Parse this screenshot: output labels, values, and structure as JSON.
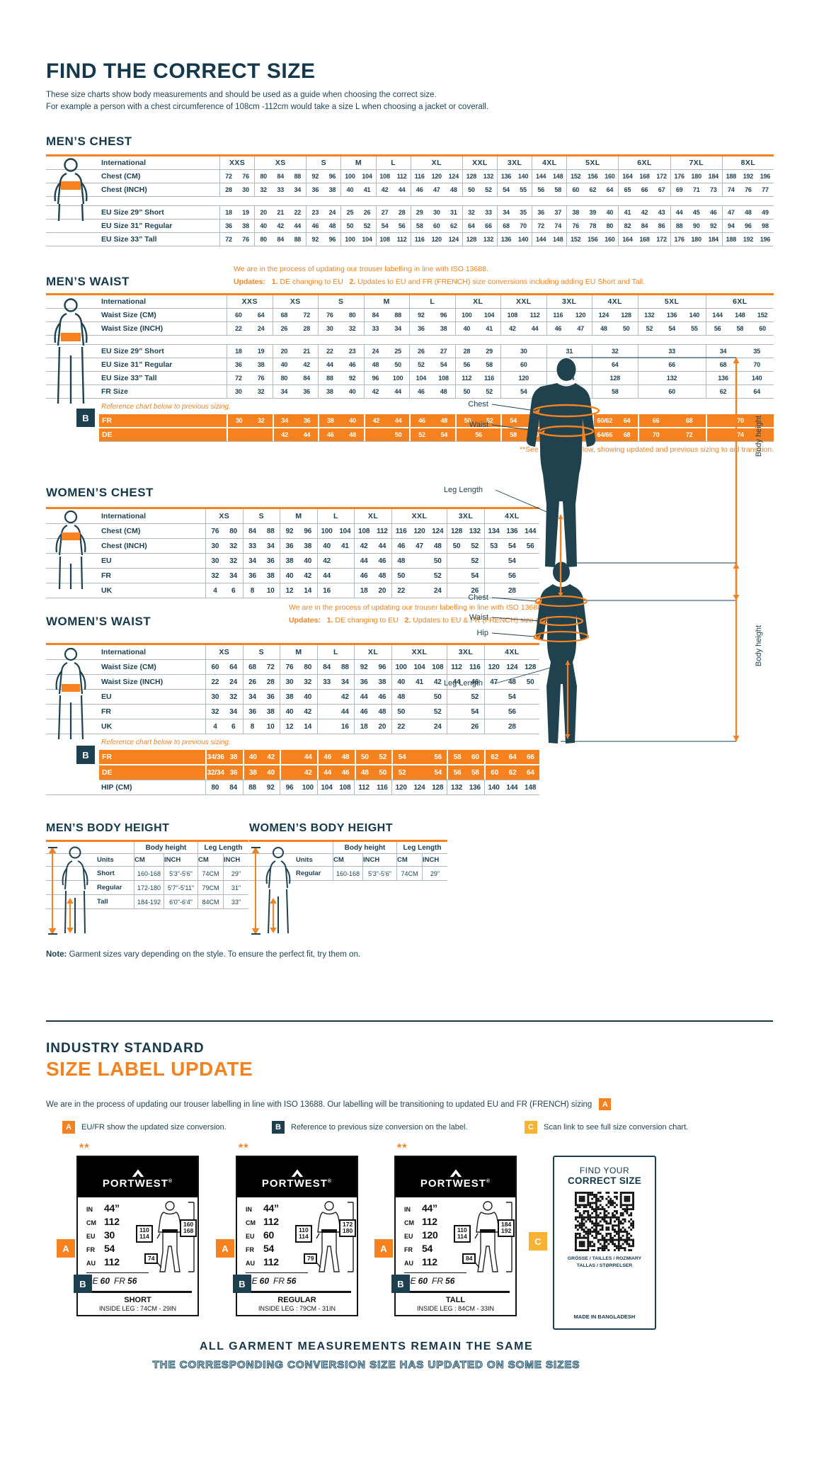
{
  "colors": {
    "orange": "#f5821f",
    "navy": "#16384a",
    "yellow": "#f9b233",
    "legacy_row": "#f5821f"
  },
  "page": {
    "title": "FIND THE CORRECT SIZE",
    "intro1": "These size charts show body measurements and should be used as a guide when choosing the correct size.",
    "intro2": "For example a person with a chest circumference of 108cm -112cm would take a size L when choosing a jacket or coverall."
  },
  "mens_chest": {
    "title": "MEN’S CHEST",
    "label_header": "International",
    "columns": [
      "XXS",
      "XS",
      "S",
      "M",
      "L",
      "XL",
      "XXL",
      "3XL",
      "4XL",
      "5XL",
      "6XL",
      "7XL",
      "8XL"
    ],
    "units": [
      2,
      3,
      2,
      2,
      2,
      3,
      2,
      2,
      2,
      3,
      3,
      3,
      3
    ],
    "rows": [
      {
        "label": "Chest (CM)",
        "cells": [
          "72 76",
          "80 84 88",
          "92 96",
          "100 104",
          "108 112",
          "116 120 124",
          "128 132",
          "136 140",
          "144 148",
          "152 156 160",
          "164 168 172",
          "176 180 184",
          "188 192 196"
        ]
      },
      {
        "label": "Chest (INCH)",
        "cells": [
          "28 30",
          "32 33 34",
          "36 38",
          "40 41",
          "42 44",
          "46 47 48",
          "50 52",
          "54 55",
          "56 58",
          "60 62 64",
          "65 66 67",
          "69 71 73",
          "74 76 77"
        ]
      }
    ],
    "eu_rows": [
      {
        "label": "EU Size 29” Short",
        "cells": [
          "18 19",
          "20 21 22",
          "23 24",
          "25 26",
          "27 28",
          "29 30 31",
          "32 33",
          "34 35",
          "36 37",
          "38 39 40",
          "41 42 43",
          "44 45 46",
          "47 48 49"
        ]
      },
      {
        "label": "EU Size 31” Regular",
        "cells": [
          "36 38",
          "40 42 44",
          "46 48",
          "50 52",
          "54 56",
          "58 60 62",
          "64 66",
          "68 70",
          "72 74",
          "76 78 80",
          "82 84 86",
          "88 90 92",
          "94 96 98"
        ]
      },
      {
        "label": "EU Size 33” Tall",
        "cells": [
          "72 76",
          "80 84 88",
          "92 96",
          "100 104",
          "108 112",
          "116 120 124",
          "128 132",
          "136 140",
          "144 148",
          "152 156 160",
          "164 168 172",
          "176 180 184",
          "188 192 196"
        ]
      }
    ]
  },
  "mens_waist": {
    "title": "MEN’S WAIST",
    "note1": "We are in the process of updating our trouser labelling in line with ISO 13688.",
    "updates_label": "Updates:",
    "update1_num": "1.",
    "update1": "DE changing to EU",
    "update2_num": "2.",
    "update2": "Updates to EU and FR (FRENCH) size conversions including adding EU Short and Tall.",
    "label_header": "International",
    "columns": [
      "XXS",
      "XS",
      "S",
      "M",
      "L",
      "XL",
      "XXL",
      "3XL",
      "4XL",
      "5XL",
      "6XL"
    ],
    "units": [
      2,
      2,
      2,
      2,
      2,
      2,
      2,
      2,
      2,
      3,
      3
    ],
    "rows": [
      {
        "label": "Waist Size (CM)",
        "cells": [
          "60 64",
          "68 72",
          "76 80",
          "84 88",
          "92 96",
          "100 104",
          "108 112",
          "116 120",
          "124 128",
          "132 136 140",
          "144 148 152"
        ]
      },
      {
        "label": "Waist Size (INCH)",
        "cells": [
          "22 24",
          "26 28",
          "30 32",
          "33 34",
          "36 38",
          "40 41",
          "42 44",
          "46 47",
          "48 50",
          "52 54 55",
          "56 58 60"
        ]
      }
    ],
    "eu_rows": [
      {
        "label": "EU Size 29” Short",
        "cells": [
          "18 19",
          "20 21",
          "22 23",
          "24 25",
          "26 27",
          "28 29",
          "30",
          "31",
          "32",
          "33",
          "34 35"
        ]
      },
      {
        "label": "EU Size 31” Regular",
        "cells": [
          "36 38",
          "40 42",
          "44 46",
          "48 50",
          "52 54",
          "56 58",
          "60",
          "62",
          "64",
          "66",
          "68 70"
        ]
      },
      {
        "label": "EU Size 33” Tall",
        "cells": [
          "72 76",
          "80 84",
          "88 92",
          "96 100",
          "104 108",
          "112 116",
          "120",
          "124",
          "128",
          "132",
          "136 140"
        ]
      },
      {
        "label": "FR Size",
        "cells": [
          "30 32",
          "34 36",
          "38 40",
          "42 44",
          "46 48",
          "50 52",
          "54",
          "56",
          "58",
          "60",
          "62 64"
        ]
      }
    ],
    "reference_note": "Reference chart below to previous sizing.",
    "legacy_badge": "B",
    "legacy_rows": [
      {
        "label": "FR",
        "cells": [
          "30 32",
          "34 36",
          "38 40",
          "42 44",
          "46 48",
          "50 52",
          "54 56",
          "58",
          "60/62 64",
          "66 68",
          "70"
        ]
      },
      {
        "label": "DE",
        "cells": [
          "",
          "42 44",
          "46 48",
          " 50",
          "52 54",
          "56",
          "58 60",
          "62",
          "64/66 68",
          "70 72",
          "74"
        ]
      }
    ],
    "footnote": "**See new label below, showing updated and previous sizing to aid transition."
  },
  "womens_chest": {
    "title": "WOMEN’S CHEST",
    "label_header": "International",
    "columns": [
      "XS",
      "S",
      "M",
      "L",
      "XL",
      "XXL",
      "3XL",
      "4XL"
    ],
    "units": [
      2,
      2,
      2,
      2,
      2,
      3,
      2,
      3
    ],
    "rows": [
      {
        "label": "Chest (CM)",
        "cells": [
          "76 80",
          "84 88",
          "92 96",
          "100 104",
          "108 112",
          "116 120 124",
          "128 132",
          "134 136 144"
        ]
      },
      {
        "label": "Chest (INCH)",
        "cells": [
          "30 32",
          "33 34",
          "36 38",
          "40 41",
          "42 44",
          "46 47 48",
          "50 52",
          "53 54 56"
        ]
      },
      {
        "label": "EU",
        "cells": [
          "30 32",
          "34 36",
          "38 40",
          "42 ",
          "44 46",
          "48  50",
          " 52",
          "54"
        ]
      },
      {
        "label": "FR",
        "cells": [
          "32 34",
          "36 38",
          "40 42",
          "44 ",
          "46 48",
          "50  52",
          " 54",
          "56"
        ]
      },
      {
        "label": "UK",
        "cells": [
          "4 6",
          "8 10",
          "12 14",
          "16 ",
          "18 20",
          "22  24",
          " 26",
          "28"
        ]
      }
    ]
  },
  "womens_waist": {
    "title": "WOMEN’S WAIST",
    "note1": "We are in the process of updating our trouser labelling in line with ISO 13688.",
    "updates_label": "Updates:",
    "update1_num": "1.",
    "update1": "DE changing to EU",
    "update2_num": "2.",
    "update2": "Updates to EU & FR (FRENCH) size conversions.",
    "label_header": "International",
    "columns": [
      "XS",
      "S",
      "M",
      "L",
      "XL",
      "XXL",
      "3XL",
      "4XL"
    ],
    "units": [
      2,
      2,
      2,
      2,
      2,
      3,
      2,
      3
    ],
    "rows": [
      {
        "label": "Waist Size (CM)",
        "cells": [
          "60 64",
          "68 72",
          "76 80",
          "84 88",
          "92 96",
          "100 104 108",
          "112 116",
          "120 124 128"
        ]
      },
      {
        "label": "Waist Size (INCH)",
        "cells": [
          "22 24",
          "26 28",
          "30 32",
          "33 34",
          "36 38",
          "40 41 42",
          "44 46",
          "47 48 50"
        ]
      },
      {
        "label": "EU",
        "cells": [
          "30 32",
          "34 36",
          "38 40",
          " 42",
          "44 46",
          "48  50",
          " 52",
          "54"
        ]
      },
      {
        "label": "FR",
        "cells": [
          "32 34",
          "36 38",
          "40 42",
          " 44",
          "46 48",
          "50  52",
          " 54",
          "56"
        ]
      },
      {
        "label": "UK",
        "cells": [
          "4 6",
          "8 10",
          "12 14",
          " 16",
          "18 20",
          "22  24",
          " 26",
          "28"
        ]
      }
    ],
    "reference_note": "Reference chart below to previous sizing.",
    "legacy_badge": "B",
    "legacy_rows": [
      {
        "label": "FR",
        "cells": [
          "34/36 38",
          "40 42",
          " 44",
          "46 48",
          "50 52",
          "54  56",
          "58 60",
          "62 64 66"
        ]
      },
      {
        "label": "DE",
        "cells": [
          "32/34 36",
          "38 40",
          " 42",
          "44 46",
          "48 50",
          "52  54",
          "56 58",
          "60 62 64"
        ]
      }
    ],
    "hip_row": {
      "label": "HIP (CM)",
      "cells": [
        "80 84",
        "88 92",
        "96 100",
        "104 108",
        "112 116",
        "120 124 128",
        "132 136",
        "140 144 148"
      ]
    }
  },
  "mens_body_height": {
    "title": "MEN’S BODY HEIGHT",
    "group1": "Body height",
    "group2": "Leg Length",
    "units_label": "Units",
    "unit_cols": [
      "CM",
      "INCH",
      "CM",
      "INCH"
    ],
    "rows": [
      {
        "label": "Short",
        "cells": [
          "160-168",
          "5'3\"-5'6\"",
          "74CM",
          "29\""
        ]
      },
      {
        "label": "Regular",
        "cells": [
          "172-180",
          "5'7\"-5'11\"",
          "79CM",
          "31\""
        ]
      },
      {
        "label": "Tall",
        "cells": [
          "184-192",
          "6'0\"-6'4\"",
          "84CM",
          "33\""
        ]
      }
    ]
  },
  "womens_body_height": {
    "title": "WOMEN’S BODY HEIGHT",
    "group1": "Body height",
    "group2": "Leg Length",
    "units_label": "Units",
    "unit_cols": [
      "CM",
      "INCH",
      "CM",
      "INCH"
    ],
    "rows": [
      {
        "label": "Regular",
        "cells": [
          "160-168",
          "5'3\"-5'6\"",
          "74CM",
          "29\""
        ]
      }
    ]
  },
  "figures": {
    "men": {
      "chest": "Chest",
      "waist": "Waist",
      "leg": "Leg Length",
      "height": "Body height"
    },
    "women": {
      "chest": "Chest",
      "waist": "Waist",
      "hip": "Hip",
      "leg": "Leg Length",
      "height": "Body height"
    }
  },
  "note": {
    "prefix": "Note:",
    "text": " Garment sizes vary depending on the style. To ensure the perfect fit, try them on."
  },
  "label_update": {
    "heading1": "INDUSTRY STANDARD",
    "heading2": "SIZE LABEL UPDATE",
    "para": "We are in the process of updating our trouser labelling in line with ISO 13688. Our labelling will be transitioning to updated EU and FR (FRENCH) sizing",
    "para_badge": "A",
    "legend": [
      {
        "letter": "A",
        "text": "EU/FR show the updated size conversion."
      },
      {
        "letter": "B",
        "text": "Reference to previous size conversion on the label."
      },
      {
        "letter": "C",
        "text": "Scan link to see full size conversion chart."
      }
    ],
    "cards": [
      {
        "stars": "**",
        "brand": "PORTWEST",
        "reg": "®",
        "badge_a": "A",
        "badge_b": "B",
        "rows": [
          {
            "k": "IN",
            "v": "44”"
          },
          {
            "k": "CM",
            "v": "112"
          },
          {
            "k": "EU",
            "v": "30"
          },
          {
            "k": "FR",
            "v": "54"
          },
          {
            "k": "AU",
            "v": "112"
          }
        ],
        "prev": [
          {
            "k": "DE",
            "v": "60"
          },
          {
            "k": "FR",
            "v": "56"
          }
        ],
        "waist_box": [
          "110",
          "114"
        ],
        "height_box": [
          "160",
          "168"
        ],
        "leg_box": "74",
        "fit": "SHORT",
        "inside_leg": "INSIDE LEG : 74CM - 29IN"
      },
      {
        "stars": "**",
        "brand": "PORTWEST",
        "reg": "®",
        "badge_a": "A",
        "badge_b": "B",
        "rows": [
          {
            "k": "IN",
            "v": "44”"
          },
          {
            "k": "CM",
            "v": "112"
          },
          {
            "k": "EU",
            "v": "60"
          },
          {
            "k": "FR",
            "v": "54"
          },
          {
            "k": "AU",
            "v": "112"
          }
        ],
        "prev": [
          {
            "k": "DE",
            "v": "60"
          },
          {
            "k": "FR",
            "v": "56"
          }
        ],
        "waist_box": [
          "110",
          "114"
        ],
        "height_box": [
          "172",
          "180"
        ],
        "leg_box": "79",
        "fit": "REGULAR",
        "inside_leg": "INSIDE LEG : 79CM - 31IN"
      },
      {
        "stars": "**",
        "brand": "PORTWEST",
        "reg": "®",
        "badge_a": "A",
        "badge_b": "B",
        "rows": [
          {
            "k": "IN",
            "v": "44”"
          },
          {
            "k": "CM",
            "v": "112"
          },
          {
            "k": "EU",
            "v": "120"
          },
          {
            "k": "FR",
            "v": "54"
          },
          {
            "k": "AU",
            "v": "112"
          }
        ],
        "prev": [
          {
            "k": "DE",
            "v": "60"
          },
          {
            "k": "FR",
            "v": "56"
          }
        ],
        "waist_box": [
          "110",
          "114"
        ],
        "height_box": [
          "184",
          "192"
        ],
        "leg_box": "84",
        "fit": "TALL",
        "inside_leg": "INSIDE LEG : 84CM - 33IN"
      }
    ],
    "qr": {
      "badge": "C",
      "line1": "FIND YOUR",
      "line2": "CORRECT SIZE",
      "langs1": "GRÖSSE / TAILLES / ROZMIARY",
      "langs2": "TALLAS / STØRRELSER",
      "made": "MADE IN BANGLADESH"
    },
    "footer1": "ALL GARMENT MEASUREMENTS REMAIN THE SAME",
    "footer2": "THE CORRESPONDING CONVERSION SIZE HAS UPDATED ON SOME SIZES"
  }
}
